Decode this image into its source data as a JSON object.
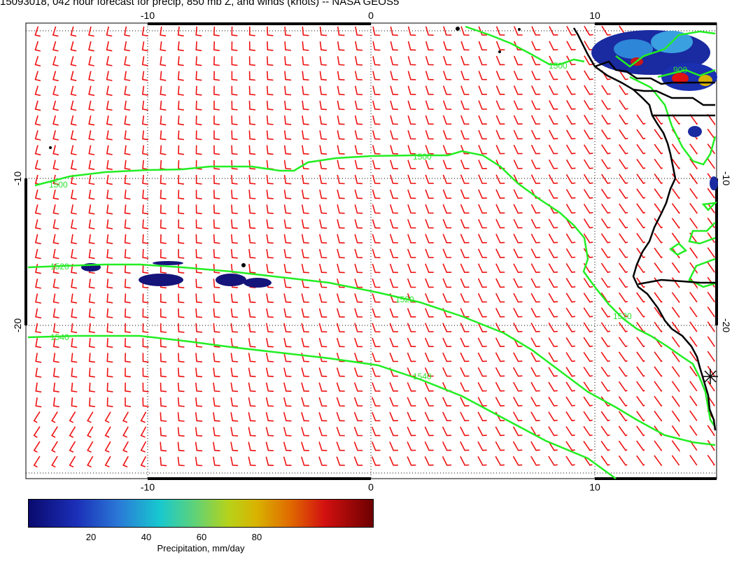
{
  "title": "15093018, 042 hour forecast for precip, 850 mb Z, and winds (knots) -- NASA GEOS5",
  "axes": {
    "lon_ticks": [
      "-10",
      "0",
      "10"
    ],
    "lat_ticks": [
      "-10",
      "-20"
    ]
  },
  "contours": {
    "color": "#22ee22",
    "labels": [
      "1500",
      "1500",
      "1500",
      "1520",
      "1520",
      "1520",
      "1540",
      "1540"
    ]
  },
  "wind_barbs": {
    "color": "#ee1111"
  },
  "coastline": {
    "color": "#000000"
  },
  "colorbar": {
    "ticks": [
      "20",
      "40",
      "60",
      "80"
    ],
    "label": "Precipitation, mm/day"
  }
}
